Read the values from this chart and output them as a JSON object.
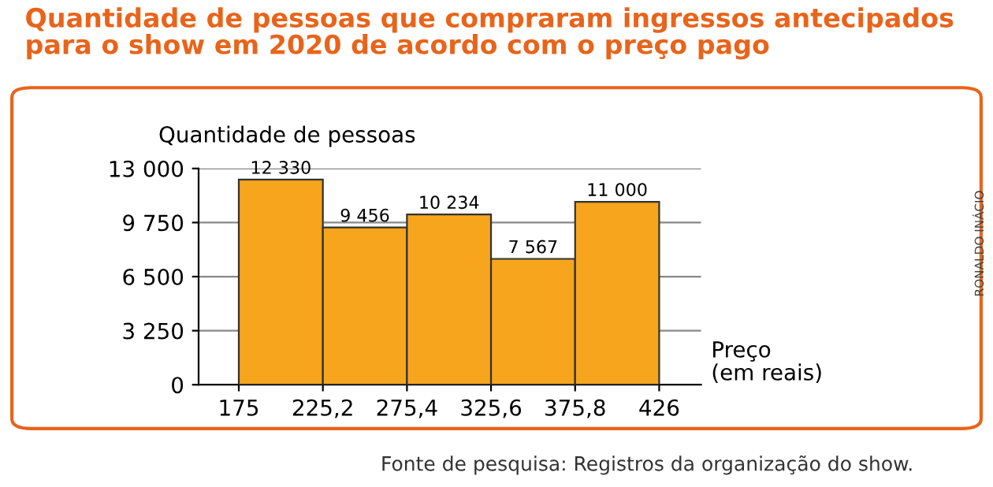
{
  "chart_data": {
    "type": "histogram",
    "title": "Quantidade de pessoas que compraram ingressos antecipados\npara o show em 2020 de acordo com o preço pago",
    "ylabel": "Quantidade de pessoas",
    "xlabel": "Preço\n(em reais)",
    "bins": [
      175,
      225.2,
      275.4,
      325.6,
      375.8,
      426
    ],
    "values": [
      12330,
      9456,
      10234,
      7567,
      11000
    ],
    "value_labels": [
      "12 330",
      "9 456",
      "10 234",
      "7 567",
      "11 000"
    ],
    "color": "#f6a51c",
    "xlim": [
      151,
      451
    ],
    "xticks": [
      175,
      {
        "value": 225.2,
        "label": "225,2"
      },
      {
        "value": 275.4,
        "label": "275,4"
      },
      {
        "value": 325.6,
        "label": "325,6"
      },
      {
        "value": 375.8,
        "label": "375,8"
      },
      426
    ],
    "ylim": [
      0,
      13000
    ],
    "yticks": [
      0,
      {
        "value": 3250,
        "label": "3 250"
      },
      {
        "value": 6500,
        "label": "6 500"
      },
      {
        "value": 9750,
        "label": "9 750"
      },
      {
        "value": 13000,
        "label": "13 000"
      }
    ],
    "grid": "y",
    "annotations": [
      "Fonte de pesquisa: Registros da organização do show.",
      "RONALDO INÁCIO"
    ]
  }
}
